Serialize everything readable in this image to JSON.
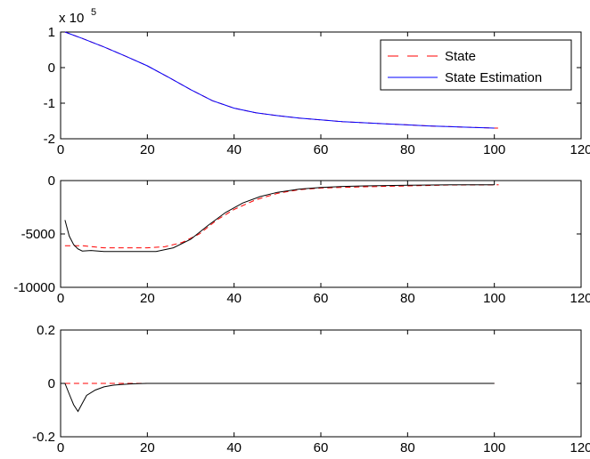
{
  "chart_data": [
    {
      "type": "line",
      "title": "",
      "xlabel": "",
      "ylabel": "",
      "exponent_label": "x 10",
      "exponent_power": "5",
      "xlim": [
        0,
        120
      ],
      "ylim": [
        -2,
        1
      ],
      "x_ticks": [
        "0",
        "20",
        "40",
        "60",
        "80",
        "100",
        "120"
      ],
      "y_ticks": [
        "-2",
        "-1",
        "0",
        "1"
      ],
      "legend": {
        "placement": "top-right",
        "entries": [
          "State",
          "State Estimation"
        ]
      },
      "series": [
        {
          "name": "State",
          "color": "#ff0000",
          "dash": "dashed",
          "x": [
            1,
            5,
            10,
            15,
            20,
            25,
            30,
            35,
            40,
            45,
            50,
            55,
            60,
            65,
            70,
            75,
            80,
            85,
            90,
            95,
            100,
            101
          ],
          "y": [
            1.0,
            0.82,
            0.58,
            0.32,
            0.05,
            -0.28,
            -0.62,
            -0.93,
            -1.14,
            -1.27,
            -1.35,
            -1.42,
            -1.47,
            -1.52,
            -1.55,
            -1.58,
            -1.61,
            -1.64,
            -1.66,
            -1.68,
            -1.7,
            -1.7
          ]
        },
        {
          "name": "State Estimation",
          "color": "#0000ff",
          "dash": "solid",
          "x": [
            1,
            5,
            10,
            15,
            20,
            25,
            30,
            35,
            40,
            45,
            50,
            55,
            60,
            65,
            70,
            75,
            80,
            85,
            90,
            95,
            100
          ],
          "y": [
            1.0,
            0.82,
            0.58,
            0.32,
            0.05,
            -0.28,
            -0.62,
            -0.93,
            -1.14,
            -1.27,
            -1.35,
            -1.42,
            -1.47,
            -1.52,
            -1.55,
            -1.58,
            -1.61,
            -1.64,
            -1.66,
            -1.68,
            -1.7
          ]
        }
      ]
    },
    {
      "type": "line",
      "title": "",
      "xlabel": "",
      "ylabel": "",
      "xlim": [
        0,
        120
      ],
      "ylim": [
        -10000,
        0
      ],
      "x_ticks": [
        "0",
        "20",
        "40",
        "60",
        "80",
        "100",
        "120"
      ],
      "y_ticks": [
        "-10000",
        "-5000",
        "0"
      ],
      "series": [
        {
          "color": "#ff0000",
          "dash": "dashed",
          "x": [
            1,
            5,
            10,
            15,
            20,
            24,
            28,
            32,
            36,
            40,
            45,
            50,
            55,
            60,
            70,
            80,
            90,
            101
          ],
          "y": [
            -6100,
            -6100,
            -6300,
            -6300,
            -6300,
            -6200,
            -5800,
            -5000,
            -3700,
            -2700,
            -1800,
            -1200,
            -850,
            -700,
            -580,
            -500,
            -420,
            -400
          ]
        },
        {
          "color": "#000000",
          "dash": "solid",
          "x": [
            1,
            2,
            3,
            4,
            5,
            7,
            10,
            15,
            20,
            22,
            26,
            30,
            34,
            38,
            42,
            46,
            50,
            55,
            60,
            65,
            70,
            80,
            90,
            100
          ],
          "y": [
            -3700,
            -5200,
            -6000,
            -6400,
            -6600,
            -6550,
            -6650,
            -6650,
            -6650,
            -6650,
            -6300,
            -5500,
            -4200,
            -3000,
            -2100,
            -1500,
            -1100,
            -800,
            -650,
            -550,
            -500,
            -430,
            -400,
            -400
          ]
        }
      ]
    },
    {
      "type": "line",
      "title": "",
      "xlabel": "",
      "ylabel": "",
      "xlim": [
        0,
        120
      ],
      "ylim": [
        -0.2,
        0.2
      ],
      "x_ticks": [
        "0",
        "20",
        "40",
        "60",
        "80",
        "100",
        "120"
      ],
      "y_ticks": [
        "-0.2",
        "0",
        "0.2"
      ],
      "series": [
        {
          "color": "#ff0000",
          "dash": "dashed",
          "x": [
            1,
            5,
            10,
            15,
            20,
            40,
            60,
            80,
            100
          ],
          "y": [
            0,
            0,
            0,
            0,
            0,
            0,
            0,
            0,
            0
          ]
        },
        {
          "color": "#000000",
          "dash": "solid",
          "x": [
            1,
            2,
            3,
            4,
            5,
            6,
            8,
            10,
            12,
            14,
            16,
            18,
            20,
            40,
            60,
            80,
            100
          ],
          "y": [
            0,
            -0.04,
            -0.08,
            -0.105,
            -0.075,
            -0.045,
            -0.025,
            -0.013,
            -0.007,
            -0.004,
            -0.002,
            -0.001,
            0,
            0,
            0,
            0,
            0
          ]
        }
      ]
    }
  ]
}
